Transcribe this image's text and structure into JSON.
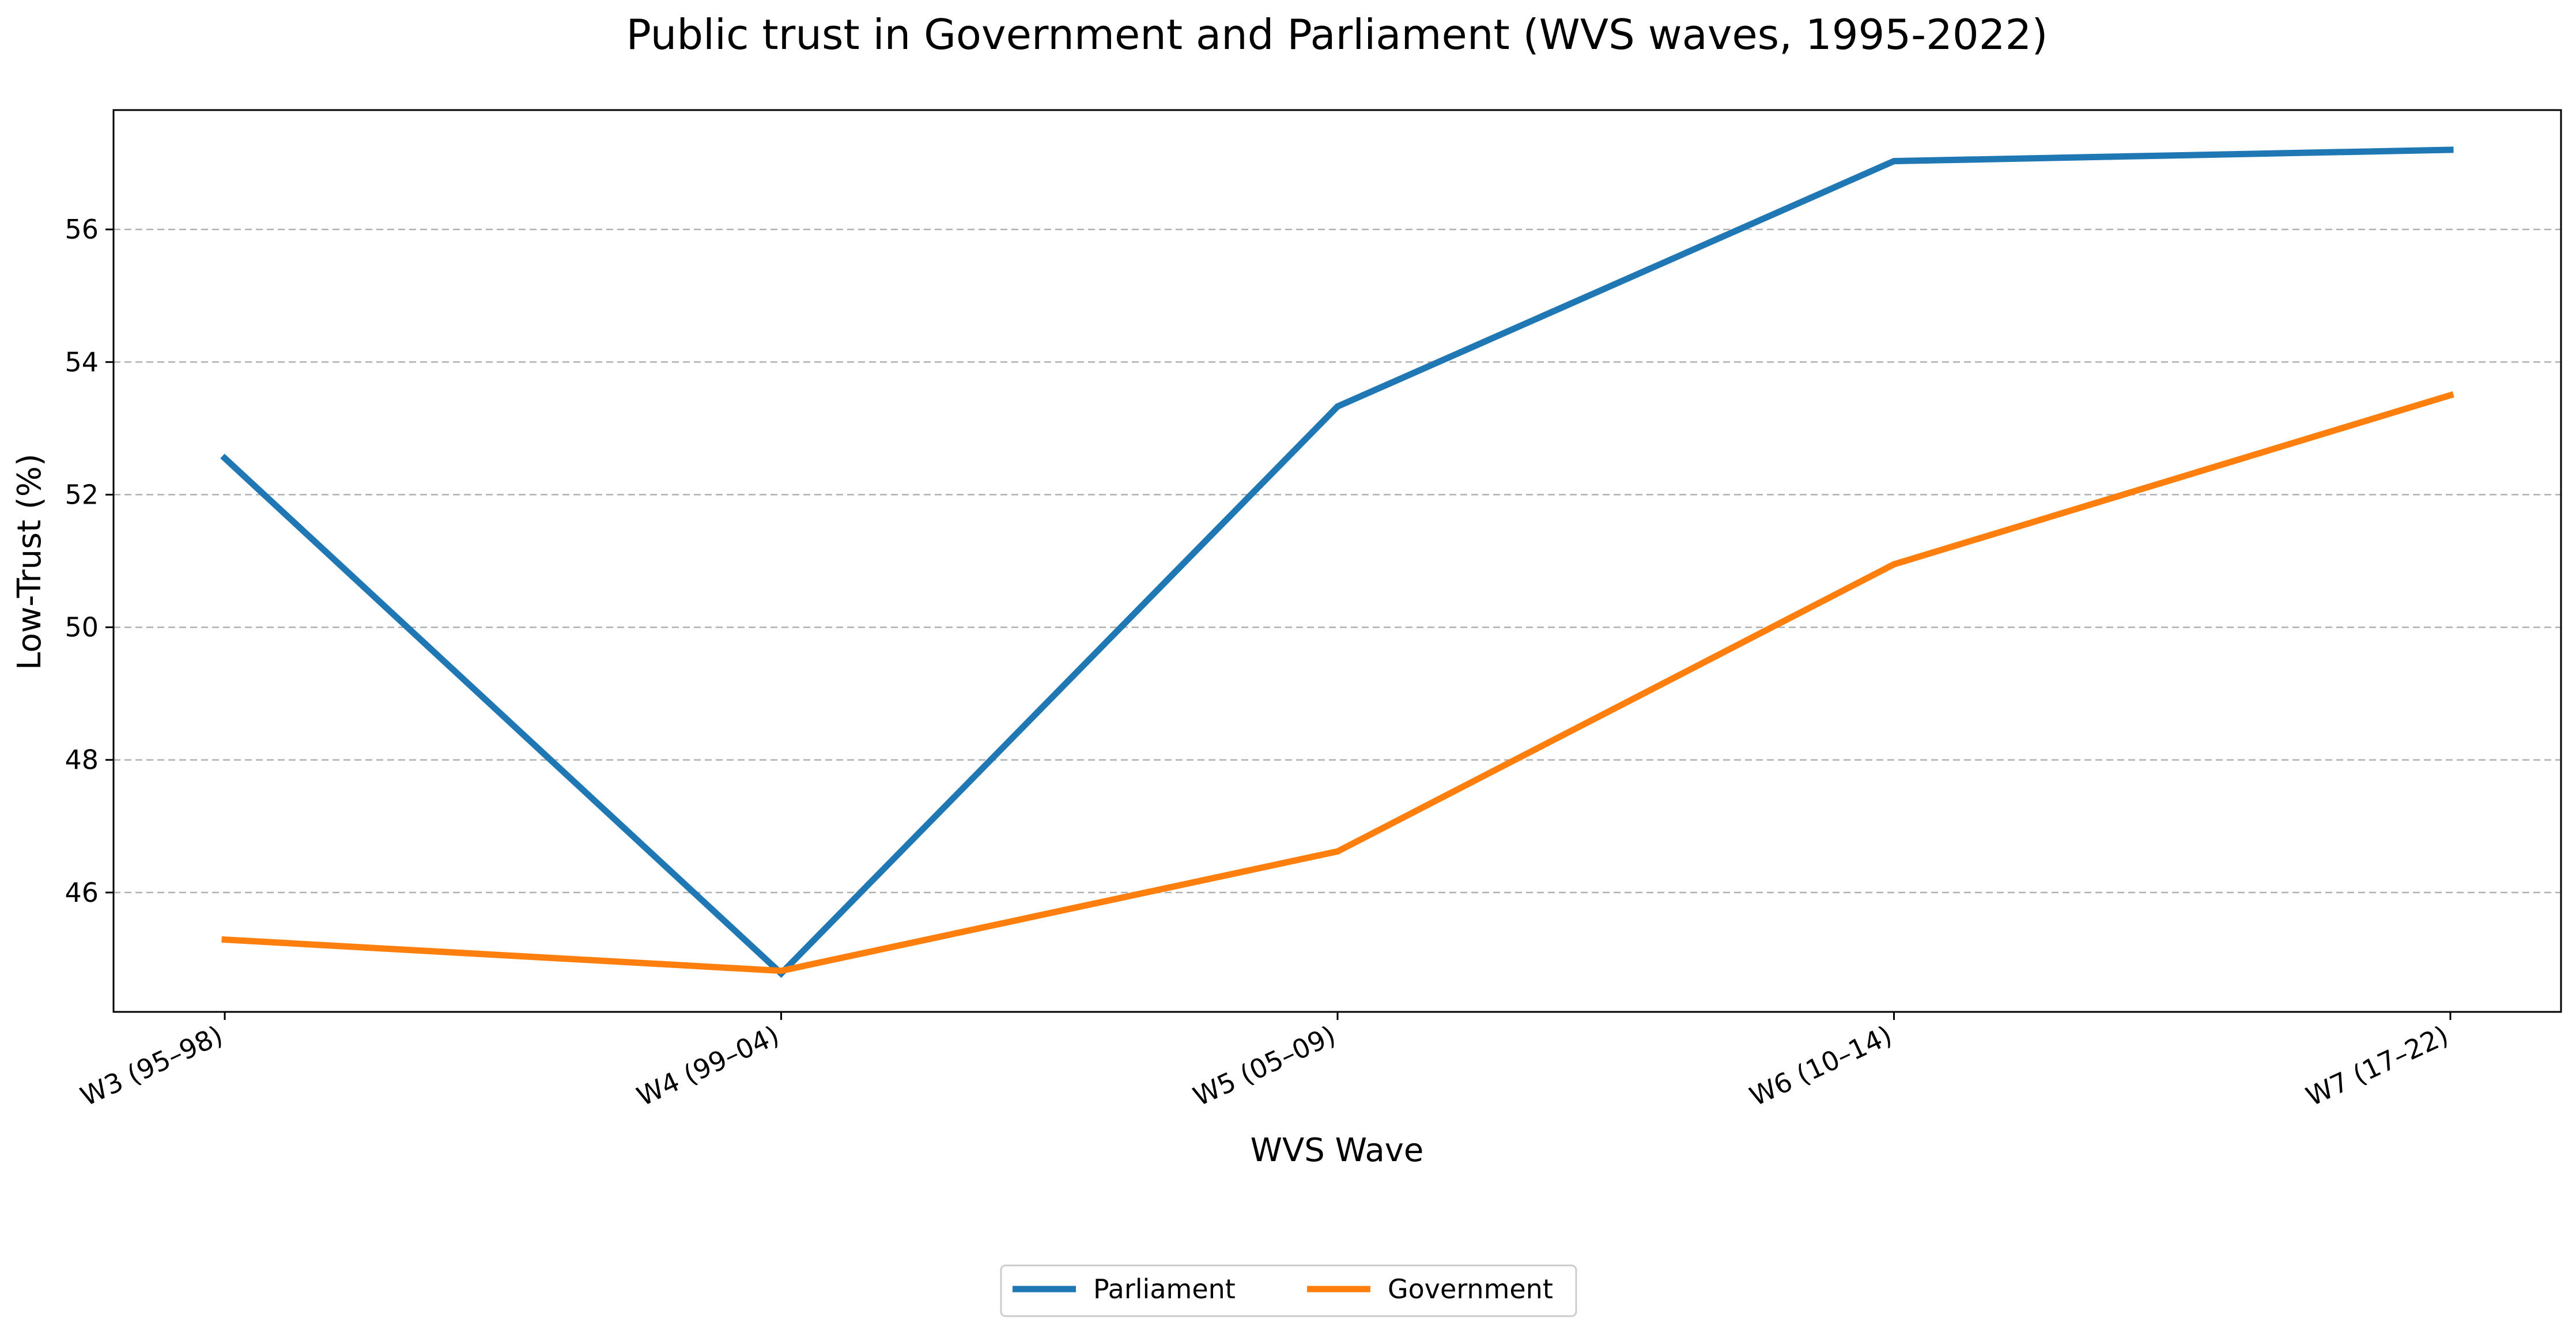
{
  "chart_data": {
    "type": "line",
    "title": "Public trust in Government and Parliament (WVS waves, 1995-2022)",
    "xlabel": "WVS Wave",
    "ylabel": "Low-Trust (%)",
    "categories": [
      "W3 (95–98)",
      "W4 (99–04)",
      "W5 (05–09)",
      "W6 (10–14)",
      "W7 (17–22)"
    ],
    "ylim": [
      44.2,
      57.8
    ],
    "yticks": [
      46,
      48,
      50,
      52,
      54,
      56
    ],
    "grid": "horizontal dashed",
    "legend_position": "bottom-center",
    "series": [
      {
        "name": "Parliament",
        "color": "#1f77b4",
        "values": [
          52.55,
          44.78,
          53.33,
          57.03,
          57.2
        ]
      },
      {
        "name": "Government",
        "color": "#ff7f0e",
        "values": [
          45.29,
          44.82,
          46.62,
          50.95,
          53.5
        ]
      }
    ]
  }
}
